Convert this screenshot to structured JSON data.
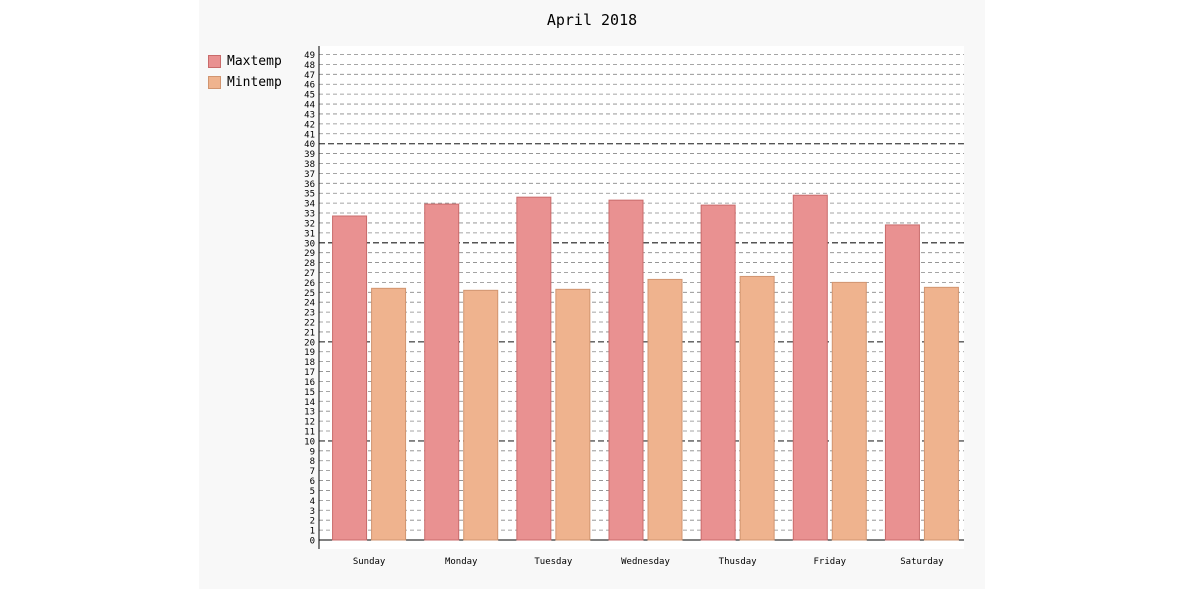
{
  "colors": {
    "frame_background": "#f8f8f8",
    "plot_background": "#ffffff",
    "maxtemp_fill": "#e99191",
    "maxtemp_stroke": "#c96b6b",
    "mintemp_fill": "#efb38e",
    "mintemp_stroke": "#d19570",
    "axis": "#000000",
    "grid": "#666666"
  },
  "chart_data": {
    "type": "bar",
    "title": "April 2018",
    "xlabel": "",
    "ylabel": "",
    "categories": [
      "Sunday",
      "Monday",
      "Tuesday",
      "Wednesday",
      "Thusday",
      "Friday",
      "Saturday"
    ],
    "series": [
      {
        "name": "Maxtemp",
        "values": [
          32.7,
          33.9,
          34.6,
          34.3,
          33.8,
          34.8,
          31.8
        ]
      },
      {
        "name": "Mintemp",
        "values": [
          25.4,
          25.2,
          25.3,
          26.3,
          26.6,
          26.0,
          25.5
        ]
      }
    ],
    "ylim": [
      0,
      49
    ],
    "yticks": [
      0,
      1,
      2,
      3,
      4,
      5,
      6,
      7,
      8,
      9,
      10,
      11,
      12,
      13,
      14,
      15,
      16,
      17,
      18,
      19,
      20,
      21,
      22,
      23,
      24,
      25,
      26,
      27,
      28,
      29,
      30,
      31,
      32,
      33,
      34,
      35,
      36,
      37,
      38,
      39,
      40,
      41,
      42,
      43,
      44,
      45,
      46,
      47,
      48,
      49
    ],
    "major_yticks": [
      10,
      20,
      30,
      40
    ],
    "grid": true,
    "legend_position": "top-left"
  }
}
